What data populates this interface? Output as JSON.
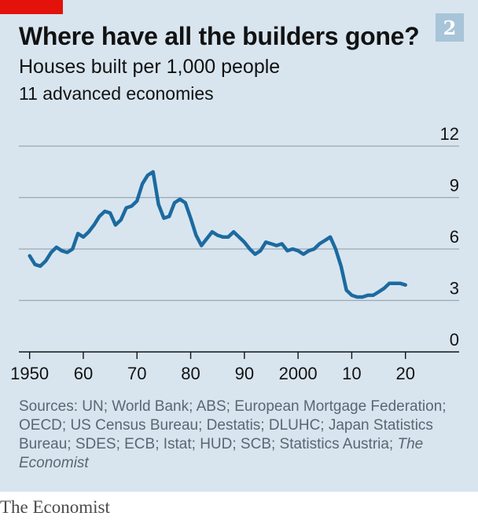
{
  "colors": {
    "background": "#d8e5ef",
    "line": "#1c6aa0",
    "gridline": "#9aa6b0",
    "axis": "#121212",
    "brand_red": "#e3120b"
  },
  "header": {
    "title": "Where have all the builders gone?",
    "badge": "2",
    "subtitle": "Houses built per 1,000 people",
    "subtitle2": "11 advanced economies"
  },
  "sources": {
    "text": "Sources: UN; World Bank; ABS; European Mortgage Federation; OECD; US Census Bureau; Destatis; DLUHC; Japan Statistics Bureau; SDES; ECB; Istat; HUD; SCB; Statistics Austria; ",
    "italic": "The Economist"
  },
  "footer": {
    "brand": "The Economist"
  },
  "chart_data": {
    "type": "line",
    "title": "Where have all the builders gone?",
    "subtitle": "Houses built per 1,000 people",
    "xlim": [
      1948,
      2030
    ],
    "ylim": [
      0,
      12
    ],
    "grid": true,
    "y_axis_position": "right",
    "x_ticks": [
      1950,
      1960,
      1970,
      1980,
      1990,
      2000,
      2010,
      2020
    ],
    "x_tick_labels": [
      "1950",
      "60",
      "70",
      "80",
      "90",
      "2000",
      "10",
      "20"
    ],
    "y_ticks": [
      0,
      3,
      6,
      9,
      12
    ],
    "y_tick_labels": [
      "0",
      "3",
      "6",
      "9",
      "12"
    ],
    "series": [
      {
        "x": [
          1950,
          1951,
          1952,
          1953,
          1954,
          1955,
          1956,
          1957,
          1958,
          1959,
          1960,
          1961,
          1962,
          1963,
          1964,
          1965,
          1966,
          1967,
          1968,
          1969,
          1970,
          1971,
          1972,
          1973,
          1974,
          1975,
          1976,
          1977,
          1978,
          1979,
          1980,
          1981,
          1982,
          1983,
          1984,
          1985,
          1986,
          1987,
          1988,
          1989,
          1990,
          1991,
          1992,
          1993,
          1994,
          1995,
          1996,
          1997,
          1998,
          1999,
          2000,
          2001,
          2002,
          2003,
          2004,
          2005,
          2006,
          2007,
          2008,
          2009,
          2010,
          2011,
          2012,
          2013,
          2014,
          2015,
          2016,
          2017,
          2018,
          2019,
          2020
        ],
        "values": [
          5.6,
          5.1,
          5.0,
          5.3,
          5.8,
          6.1,
          5.9,
          5.8,
          6.0,
          6.9,
          6.7,
          7.0,
          7.4,
          7.9,
          8.2,
          8.1,
          7.4,
          7.7,
          8.4,
          8.5,
          8.8,
          9.8,
          10.3,
          10.5,
          8.6,
          7.8,
          7.9,
          8.7,
          8.9,
          8.7,
          7.8,
          6.8,
          6.2,
          6.6,
          7.0,
          6.8,
          6.7,
          6.7,
          7.0,
          6.7,
          6.4,
          6.0,
          5.7,
          5.9,
          6.4,
          6.3,
          6.2,
          6.3,
          5.9,
          6.0,
          5.9,
          5.7,
          5.9,
          6.0,
          6.3,
          6.5,
          6.7,
          6.0,
          5.0,
          3.6,
          3.3,
          3.2,
          3.2,
          3.3,
          3.3,
          3.5,
          3.7,
          4.0,
          4.0,
          4.0,
          3.9
        ]
      }
    ]
  }
}
